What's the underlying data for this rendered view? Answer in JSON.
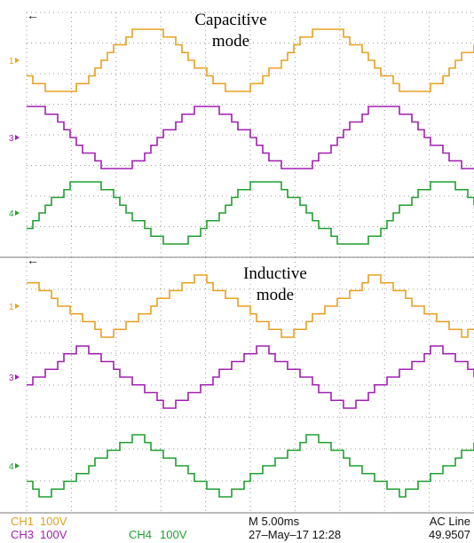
{
  "panels": [
    {
      "title": [
        "Capacitive",
        "mode"
      ],
      "channels": [
        "1",
        "3",
        "4"
      ]
    },
    {
      "title": [
        "Inductive",
        "mode"
      ],
      "channels": [
        "1",
        "3",
        "4"
      ]
    }
  ],
  "status": {
    "ch1": {
      "name": "CH1",
      "scale": "100V"
    },
    "ch3": {
      "name": "CH3",
      "scale": "100V"
    },
    "ch4": {
      "name": "CH4",
      "scale": "100V"
    },
    "timebase": "M 5.00ms",
    "date": "27–May–17 12:28",
    "trigger": "AC Line",
    "frequency": "49.9507"
  }
}
